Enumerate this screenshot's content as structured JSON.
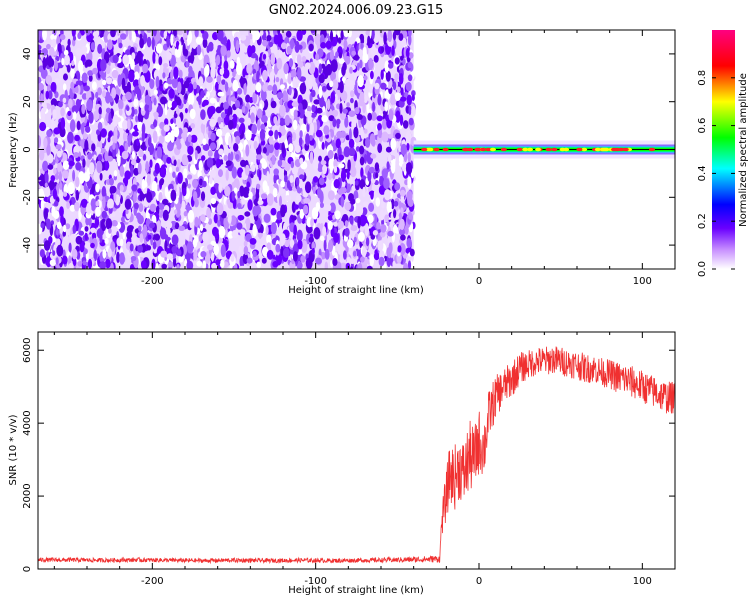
{
  "title": "GN02.2024.006.09.23.G15",
  "chart_data": [
    {
      "type": "heatmap",
      "xlabel": "Height of straight line (km)",
      "ylabel": "Frequency (Hz)",
      "xlim": [
        -270,
        120
      ],
      "ylim": [
        -50,
        50
      ],
      "xticks": [
        -200,
        -100,
        0,
        100
      ],
      "yticks": [
        -40,
        -20,
        0,
        20,
        40
      ],
      "xtick_labels": [
        "-200",
        "-100",
        "0",
        "100"
      ],
      "ytick_labels": [
        "-40",
        "-20",
        "0",
        "20",
        "40"
      ],
      "noise_region_x": [
        -270,
        -40
      ],
      "signal_region_x": [
        -40,
        120
      ],
      "signal_frequency_hz": 0,
      "colorbar": {
        "label": "Normalized spectral amplitude",
        "range": [
          0,
          1
        ],
        "ticks": [
          0.0,
          0.2,
          0.4,
          0.6,
          0.8
        ],
        "tick_labels": [
          "0.0",
          "0.2",
          "0.4",
          "0.6",
          "0.8"
        ],
        "colors": [
          "#ffffff",
          "#6a00ff",
          "#0000ff",
          "#00ffff",
          "#00ff00",
          "#ffff00",
          "#ff0000",
          "#ff0080"
        ]
      }
    },
    {
      "type": "line",
      "xlabel": "Height of straight line (km)",
      "ylabel": "SNR (10 * v/v)",
      "xlim": [
        -270,
        120
      ],
      "ylim": [
        0,
        6500
      ],
      "xticks": [
        -200,
        -100,
        0,
        100
      ],
      "yticks": [
        0,
        2000,
        4000,
        6000
      ],
      "xtick_labels": [
        "-200",
        "-100",
        "0",
        "100"
      ],
      "ytick_labels": [
        "0",
        "2000",
        "4000",
        "6000"
      ],
      "color": "#f03030",
      "x": [
        -270,
        -250,
        -230,
        -210,
        -190,
        -170,
        -150,
        -130,
        -110,
        -90,
        -70,
        -50,
        -40,
        -30,
        -24,
        -23,
        -22,
        -20,
        -18,
        -15,
        -12,
        -9,
        -6,
        -3,
        0,
        3,
        6,
        10,
        15,
        20,
        25,
        30,
        35,
        40,
        45,
        50,
        55,
        60,
        65,
        70,
        75,
        80,
        85,
        90,
        95,
        100,
        105,
        110,
        115,
        120
      ],
      "y": [
        250,
        250,
        240,
        250,
        240,
        230,
        240,
        230,
        240,
        230,
        240,
        250,
        260,
        270,
        280,
        1200,
        1500,
        2000,
        2600,
        2500,
        2800,
        2600,
        3100,
        3000,
        3500,
        3300,
        4200,
        4700,
        5000,
        5200,
        5500,
        5600,
        5700,
        5700,
        5750,
        5700,
        5650,
        5600,
        5500,
        5500,
        5400,
        5350,
        5250,
        5200,
        5100,
        5000,
        4900,
        4800,
        4700,
        4700
      ],
      "noise_amplitude": [
        60,
        60,
        60,
        60,
        60,
        60,
        60,
        60,
        60,
        60,
        60,
        70,
        80,
        90,
        100,
        300,
        500,
        700,
        800,
        900,
        900,
        900,
        1000,
        900,
        900,
        800,
        700,
        600,
        500,
        500,
        450,
        400,
        400,
        400,
        400,
        400,
        400,
        400,
        400,
        400,
        400,
        400,
        450,
        450,
        450,
        450,
        450,
        450,
        450,
        450
      ]
    }
  ]
}
